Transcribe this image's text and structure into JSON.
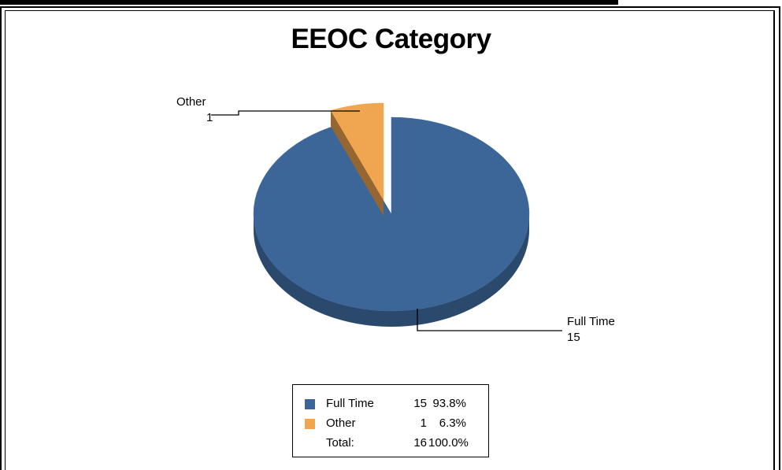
{
  "chart_data": {
    "type": "pie",
    "title": "EEOC Category",
    "slices": [
      {
        "label": "Full Time",
        "value": 15,
        "percent": "93.8%",
        "color": "#3c6698"
      },
      {
        "label": "Other",
        "value": 1,
        "percent": "6.3%",
        "color": "#f0a550"
      }
    ],
    "total": {
      "label": "Total:",
      "value": 16,
      "percent": "100.0%"
    },
    "callouts": [
      {
        "label": "Other",
        "value": "1"
      },
      {
        "label": "Full Time",
        "value": "15"
      }
    ],
    "legend_position": "bottom-center"
  }
}
